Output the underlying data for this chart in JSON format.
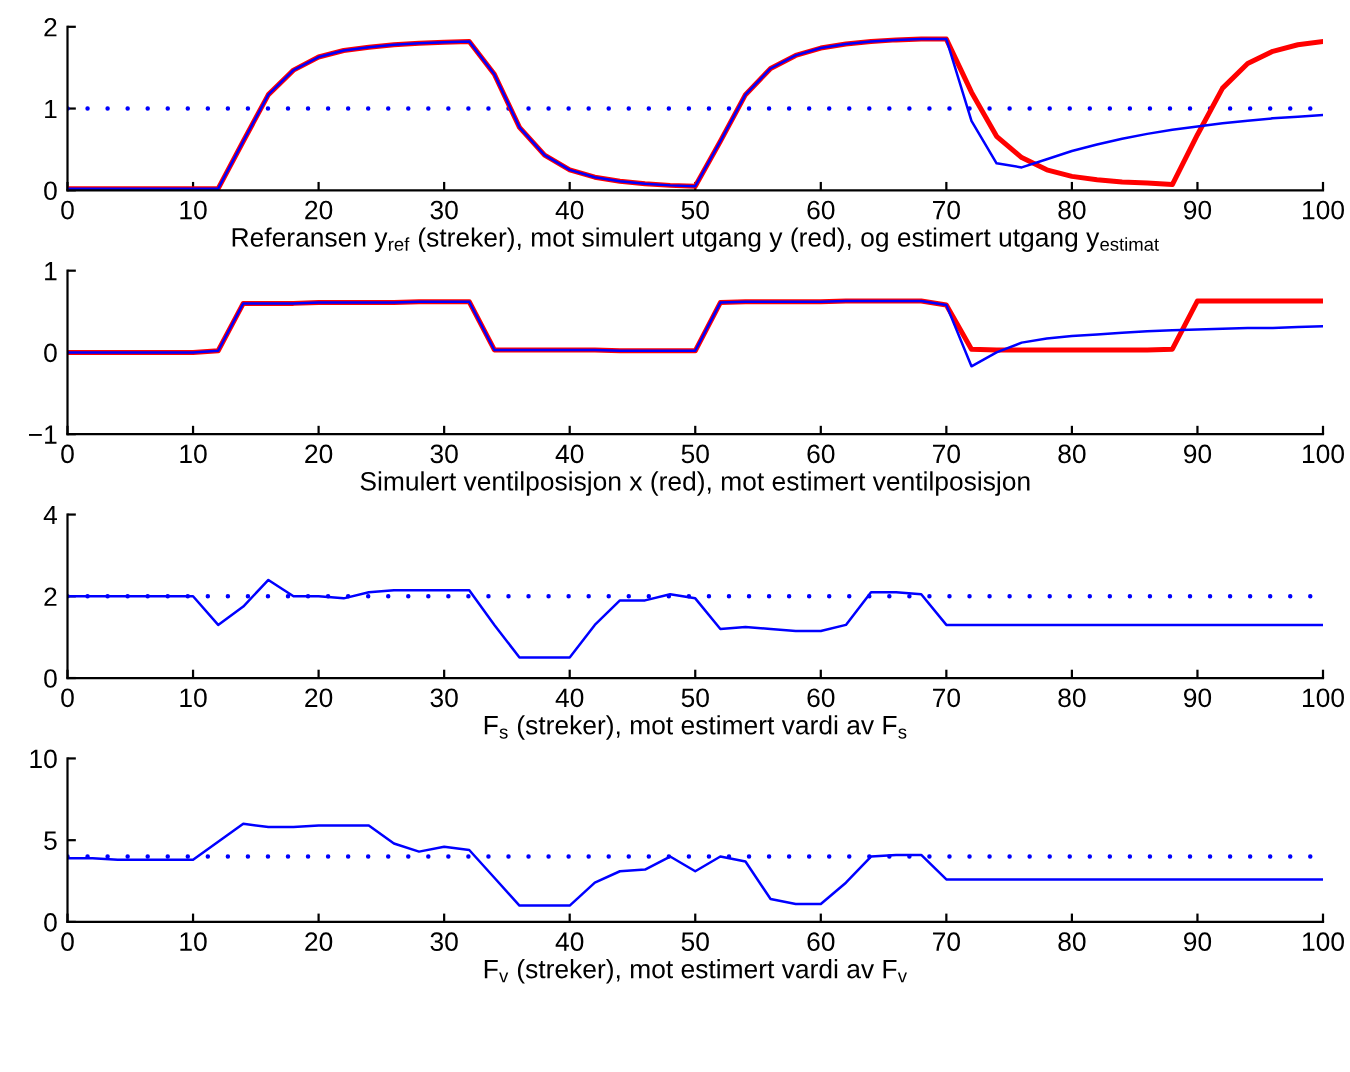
{
  "chart_data": [
    {
      "type": "line",
      "xlabel": "Referansen y$_{ref}$ (streker), mot simulert utgang y (red), og estimert utgang y$_{estimat}$",
      "x": [
        0,
        2,
        4,
        6,
        8,
        10,
        12,
        14,
        16,
        18,
        20,
        22,
        24,
        26,
        28,
        30,
        32,
        34,
        36,
        38,
        40,
        42,
        44,
        46,
        48,
        50,
        52,
        54,
        56,
        58,
        60,
        62,
        64,
        66,
        68,
        70,
        72,
        74,
        76,
        78,
        80,
        82,
        84,
        86,
        88,
        90,
        92,
        94,
        96,
        98,
        100
      ],
      "xlim": [
        0,
        100
      ],
      "xticks": [
        0,
        10,
        20,
        30,
        40,
        50,
        60,
        70,
        80,
        90,
        100
      ],
      "ylim": [
        0,
        2
      ],
      "yticks": [
        0,
        1,
        2
      ],
      "grid": false,
      "series": [
        {
          "color": "#0000ff",
          "line_style": "dotted",
          "x": [
            0,
            100
          ],
          "values": [
            1,
            1
          ]
        },
        {
          "color": "#ff0000",
          "line_style": "solid",
          "values": [
            0.02,
            0.02,
            0.02,
            0.02,
            0.02,
            0.02,
            0.02,
            0.6,
            1.17,
            1.47,
            1.63,
            1.71,
            1.75,
            1.78,
            1.8,
            1.81,
            1.82,
            1.42,
            0.77,
            0.43,
            0.25,
            0.16,
            0.11,
            0.08,
            0.06,
            0.05,
            0.6,
            1.17,
            1.49,
            1.65,
            1.74,
            1.79,
            1.82,
            1.84,
            1.85,
            1.85,
            1.2,
            0.66,
            0.4,
            0.25,
            0.17,
            0.13,
            0.1,
            0.09,
            0.07,
            0.68,
            1.25,
            1.55,
            1.7,
            1.78,
            1.82
          ]
        },
        {
          "color": "#0000ff",
          "line_style": "solid",
          "values": [
            0.02,
            0.02,
            0.02,
            0.02,
            0.02,
            0.02,
            0.02,
            0.6,
            1.17,
            1.47,
            1.63,
            1.71,
            1.75,
            1.78,
            1.8,
            1.81,
            1.82,
            1.42,
            0.77,
            0.43,
            0.25,
            0.16,
            0.11,
            0.08,
            0.06,
            0.05,
            0.6,
            1.17,
            1.49,
            1.65,
            1.74,
            1.79,
            1.82,
            1.84,
            1.85,
            1.85,
            0.85,
            0.33,
            0.28,
            0.38,
            0.48,
            0.56,
            0.63,
            0.69,
            0.74,
            0.78,
            0.82,
            0.85,
            0.88,
            0.9,
            0.92
          ]
        }
      ]
    },
    {
      "type": "line",
      "xlabel": "Simulert ventilposisjon x (red), mot estimert ventilposisjon",
      "x": [
        0,
        2,
        4,
        6,
        8,
        10,
        12,
        14,
        16,
        18,
        20,
        22,
        24,
        26,
        28,
        30,
        32,
        34,
        36,
        38,
        40,
        42,
        44,
        46,
        48,
        50,
        52,
        54,
        56,
        58,
        60,
        62,
        64,
        66,
        68,
        70,
        72,
        74,
        76,
        78,
        80,
        82,
        84,
        86,
        88,
        90,
        92,
        94,
        96,
        98,
        100
      ],
      "xlim": [
        0,
        100
      ],
      "xticks": [
        0,
        10,
        20,
        30,
        40,
        50,
        60,
        70,
        80,
        90,
        100
      ],
      "ylim": [
        -1,
        1
      ],
      "yticks": [
        {
          "value": -1,
          "label": "−1"
        },
        0,
        1
      ],
      "grid": false,
      "series": [
        {
          "color": "#ff0000",
          "line_style": "solid",
          "values": [
            0,
            0,
            0,
            0,
            0,
            0,
            0.02,
            0.6,
            0.6,
            0.6,
            0.61,
            0.61,
            0.61,
            0.61,
            0.62,
            0.62,
            0.62,
            0.03,
            0.03,
            0.03,
            0.03,
            0.03,
            0.02,
            0.02,
            0.02,
            0.02,
            0.61,
            0.62,
            0.62,
            0.62,
            0.62,
            0.63,
            0.63,
            0.63,
            0.63,
            0.58,
            0.04,
            0.03,
            0.03,
            0.03,
            0.03,
            0.03,
            0.03,
            0.03,
            0.04,
            0.63,
            0.63,
            0.63,
            0.63,
            0.63,
            0.63
          ]
        },
        {
          "color": "#0000ff",
          "line_style": "solid",
          "values": [
            0,
            0,
            0,
            0,
            0,
            0,
            0.02,
            0.6,
            0.6,
            0.6,
            0.61,
            0.61,
            0.61,
            0.61,
            0.62,
            0.62,
            0.62,
            0.03,
            0.03,
            0.03,
            0.03,
            0.03,
            0.02,
            0.02,
            0.02,
            0.02,
            0.61,
            0.62,
            0.62,
            0.62,
            0.62,
            0.63,
            0.63,
            0.63,
            0.63,
            0.58,
            -0.17,
            0.0,
            0.12,
            0.17,
            0.2,
            0.22,
            0.24,
            0.26,
            0.27,
            0.28,
            0.29,
            0.3,
            0.3,
            0.31,
            0.32
          ]
        }
      ]
    },
    {
      "type": "line",
      "xlabel": "F$_{s}$ (streker), mot estimert vardi av F$_{s}$",
      "x": [
        0,
        2,
        4,
        6,
        8,
        10,
        12,
        14,
        16,
        18,
        20,
        22,
        24,
        26,
        28,
        30,
        32,
        34,
        36,
        38,
        40,
        42,
        44,
        46,
        48,
        50,
        52,
        54,
        56,
        58,
        60,
        62,
        64,
        66,
        68,
        70,
        72,
        74,
        76,
        78,
        80,
        82,
        84,
        86,
        88,
        90,
        92,
        94,
        96,
        98,
        100
      ],
      "xlim": [
        0,
        100
      ],
      "xticks": [
        0,
        10,
        20,
        30,
        40,
        50,
        60,
        70,
        80,
        90,
        100
      ],
      "ylim": [
        0,
        4
      ],
      "yticks": [
        0,
        2,
        4
      ],
      "grid": false,
      "series": [
        {
          "color": "#0000ff",
          "line_style": "solid",
          "values": [
            2.0,
            2.0,
            2.0,
            2.0,
            2.0,
            2.0,
            1.3,
            1.75,
            2.4,
            2.0,
            2.0,
            1.95,
            2.1,
            2.15,
            2.15,
            2.15,
            2.15,
            1.3,
            0.5,
            0.5,
            0.5,
            1.3,
            1.9,
            1.9,
            2.05,
            1.95,
            1.2,
            1.25,
            1.2,
            1.15,
            1.15,
            1.3,
            2.1,
            2.1,
            2.05,
            1.3,
            1.3,
            1.3,
            1.3,
            1.3,
            1.3,
            1.3,
            1.3,
            1.3,
            1.3,
            1.3,
            1.3,
            1.3,
            1.3,
            1.3,
            1.3
          ]
        },
        {
          "color": "#0000ff",
          "line_style": "dotted",
          "values": [
            2,
            2,
            2,
            2,
            2,
            2,
            2,
            2,
            2,
            2,
            2,
            2,
            2,
            2,
            2,
            2,
            2,
            2,
            2,
            2,
            2,
            2,
            2,
            2,
            2,
            2,
            2,
            2,
            2,
            2,
            2,
            2,
            2,
            2,
            2,
            2,
            2,
            2,
            2,
            2,
            2,
            2,
            2,
            2,
            2,
            2,
            2,
            2,
            2,
            2,
            2
          ]
        }
      ]
    },
    {
      "type": "line",
      "xlabel": "F$_{v}$ (streker), mot estimert vardi av F$_{v}$",
      "x": [
        0,
        2,
        4,
        6,
        8,
        10,
        12,
        14,
        16,
        18,
        20,
        22,
        24,
        26,
        28,
        30,
        32,
        34,
        36,
        38,
        40,
        42,
        44,
        46,
        48,
        50,
        52,
        54,
        56,
        58,
        60,
        62,
        64,
        66,
        68,
        70,
        72,
        74,
        76,
        78,
        80,
        82,
        84,
        86,
        88,
        90,
        92,
        94,
        96,
        98,
        100
      ],
      "xlim": [
        0,
        100
      ],
      "xticks": [
        0,
        10,
        20,
        30,
        40,
        50,
        60,
        70,
        80,
        90,
        100
      ],
      "ylim": [
        0,
        10
      ],
      "yticks": [
        0,
        5,
        10
      ],
      "grid": false,
      "series": [
        {
          "color": "#0000ff",
          "line_style": "solid",
          "values": [
            3.9,
            3.9,
            3.8,
            3.8,
            3.8,
            3.8,
            4.9,
            6.0,
            5.8,
            5.8,
            5.9,
            5.9,
            5.9,
            4.8,
            4.3,
            4.6,
            4.4,
            2.7,
            1.0,
            1.0,
            1.0,
            2.4,
            3.1,
            3.2,
            4.0,
            3.1,
            4.0,
            3.7,
            1.4,
            1.1,
            1.1,
            2.4,
            4.0,
            4.1,
            4.1,
            2.6,
            2.6,
            2.6,
            2.6,
            2.6,
            2.6,
            2.6,
            2.6,
            2.6,
            2.6,
            2.6,
            2.6,
            2.6,
            2.6,
            2.6,
            2.6
          ]
        },
        {
          "color": "#0000ff",
          "line_style": "dotted",
          "values": [
            4,
            4,
            4,
            4,
            4,
            4,
            4,
            4,
            4,
            4,
            4,
            4,
            4,
            4,
            4,
            4,
            4,
            4,
            4,
            4,
            4,
            4,
            4,
            4,
            4,
            4,
            4,
            4,
            4,
            4,
            4,
            4,
            4,
            4,
            4,
            4,
            4,
            4,
            4,
            4,
            4,
            4,
            4,
            4,
            4,
            4,
            4,
            4,
            4,
            4,
            4
          ]
        }
      ]
    }
  ]
}
